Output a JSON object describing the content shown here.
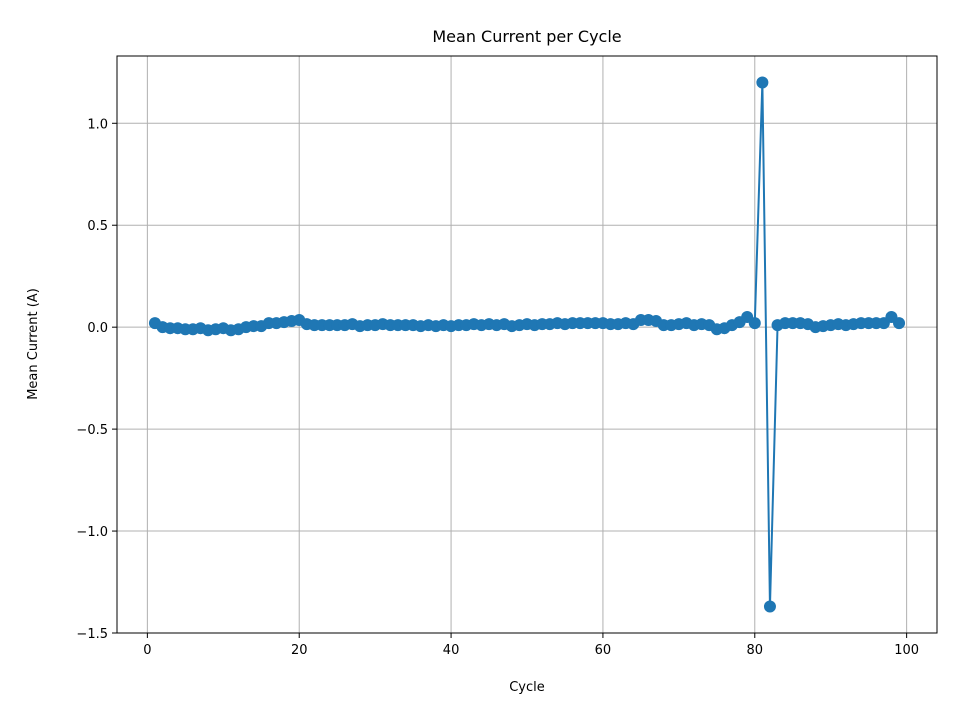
{
  "chart_data": {
    "type": "line",
    "title": "Mean Current per Cycle",
    "xlabel": "Cycle",
    "ylabel": "Mean Current (A)",
    "xlim": [
      -4,
      104
    ],
    "ylim": [
      -1.5,
      1.33
    ],
    "xticks": [
      0,
      20,
      40,
      60,
      80,
      100
    ],
    "xtick_labels": [
      "0",
      "20",
      "40",
      "60",
      "80",
      "100"
    ],
    "yticks": [
      -1.5,
      -1.0,
      -0.5,
      0.0,
      0.5,
      1.0
    ],
    "ytick_labels": [
      "−1.5",
      "−1.0",
      "−0.5",
      "0.0",
      "0.5",
      "1.0"
    ],
    "grid": true,
    "series": [
      {
        "color": "#1f77b4",
        "marker": "circle",
        "x": [
          1,
          2,
          3,
          4,
          5,
          6,
          7,
          8,
          9,
          10,
          11,
          12,
          13,
          14,
          15,
          16,
          17,
          18,
          19,
          20,
          21,
          22,
          23,
          24,
          25,
          26,
          27,
          28,
          29,
          30,
          31,
          32,
          33,
          34,
          35,
          36,
          37,
          38,
          39,
          40,
          41,
          42,
          43,
          44,
          45,
          46,
          47,
          48,
          49,
          50,
          51,
          52,
          53,
          54,
          55,
          56,
          57,
          58,
          59,
          60,
          61,
          62,
          63,
          64,
          65,
          66,
          67,
          68,
          69,
          70,
          71,
          72,
          73,
          74,
          75,
          76,
          77,
          78,
          79,
          80,
          81,
          82,
          83,
          84,
          85,
          86,
          87,
          88,
          89,
          90,
          91,
          92,
          93,
          94,
          95,
          96,
          97,
          98,
          99
        ],
        "y": [
          0.02,
          0.0,
          -0.005,
          -0.005,
          -0.01,
          -0.01,
          -0.005,
          -0.015,
          -0.01,
          -0.005,
          -0.015,
          -0.01,
          0.0,
          0.005,
          0.005,
          0.02,
          0.02,
          0.025,
          0.03,
          0.035,
          0.015,
          0.01,
          0.01,
          0.01,
          0.01,
          0.01,
          0.015,
          0.005,
          0.01,
          0.01,
          0.015,
          0.01,
          0.01,
          0.01,
          0.01,
          0.005,
          0.01,
          0.005,
          0.01,
          0.005,
          0.01,
          0.01,
          0.015,
          0.01,
          0.015,
          0.01,
          0.015,
          0.005,
          0.01,
          0.015,
          0.01,
          0.015,
          0.015,
          0.02,
          0.015,
          0.02,
          0.02,
          0.02,
          0.02,
          0.02,
          0.015,
          0.015,
          0.02,
          0.015,
          0.035,
          0.035,
          0.03,
          0.01,
          0.01,
          0.015,
          0.02,
          0.01,
          0.015,
          0.01,
          -0.01,
          -0.005,
          0.01,
          0.025,
          0.05,
          0.02,
          1.2,
          -1.37,
          0.01,
          0.02,
          0.02,
          0.02,
          0.015,
          0.0,
          0.005,
          0.01,
          0.015,
          0.01,
          0.015,
          0.02,
          0.02,
          0.02,
          0.02,
          0.05,
          0.02
        ]
      }
    ]
  }
}
